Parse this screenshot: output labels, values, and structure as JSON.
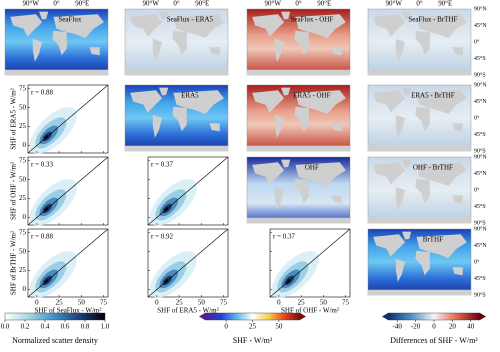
{
  "lon_labels": [
    "90°W",
    "0°",
    "90°E"
  ],
  "lat_labels": [
    "90°N",
    "45°N",
    "0°",
    "45°S",
    "90°S"
  ],
  "map_titles": [
    "SeaFlux",
    "SeaFlux - ERA5",
    "SeaFlux - OHF",
    "SeaFlux - BrTHF",
    "ERA5",
    "ERA5 - OHF",
    "ERA5 - BrTHF",
    "OHF",
    "OHF - BrTHF",
    "BrTHF"
  ],
  "scatter": {
    "lim": [
      -10,
      80
    ],
    "ticks": [
      0,
      25,
      50,
      75
    ],
    "y_labels": [
      "SHF of ERA5 - W/m²",
      "SHF of OHF - W/m²",
      "SHF of BrTHF - W/m²"
    ],
    "x_labels": [
      "SHF of SeaFlux - W/m²",
      "SHF of ERA5 - W/m²",
      "SHF of OHF - W/m²"
    ],
    "r_labels": [
      "r = 0.88",
      "r = 0.33",
      "r = 0.37",
      "r = 0.88",
      "r = 0.92",
      "r = 0.37"
    ]
  },
  "colorbars": [
    {
      "label": "Normalized scatter density",
      "lim": [
        0,
        1
      ],
      "ticks": [
        {
          "value": 0,
          "label": "0.0"
        },
        0.2,
        0.4,
        0.6,
        0.8,
        {
          "value": 1,
          "label": "1.0"
        }
      ],
      "colors": [
        "#ffffff",
        "#9fd3e6",
        "#3b8fc4",
        "#1b3d7a",
        "#000000"
      ]
    },
    {
      "label": "SHF - W/m²",
      "lim": [
        -20,
        70
      ],
      "ticks": [
        0,
        25,
        50
      ],
      "colors": [
        "#5b1a8c",
        "#1f3fd6",
        "#5fb6ef",
        "#ffffff",
        "#f7d24a",
        "#e8461e",
        "#7a0b0b"
      ]
    },
    {
      "label": "Differences of SHF - W/m²",
      "lim": [
        -50,
        50
      ],
      "ticks": [
        -40,
        -20,
        0,
        20,
        40
      ],
      "colors": [
        "#08306b",
        "#4a90c9",
        "#f5f5f5",
        "#e0664a",
        "#67000d"
      ]
    }
  ]
}
